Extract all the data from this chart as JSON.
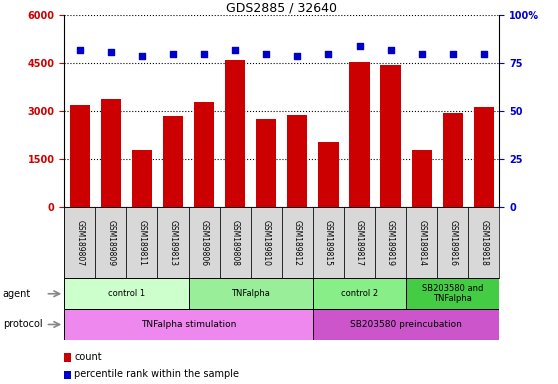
{
  "title": "GDS2885 / 32640",
  "samples": [
    "GSM189807",
    "GSM189809",
    "GSM189811",
    "GSM189813",
    "GSM189806",
    "GSM189808",
    "GSM189810",
    "GSM189812",
    "GSM189815",
    "GSM189817",
    "GSM189819",
    "GSM189814",
    "GSM189816",
    "GSM189818"
  ],
  "counts": [
    3200,
    3400,
    1800,
    2850,
    3300,
    4600,
    2750,
    2900,
    2050,
    4550,
    4450,
    1800,
    2950,
    3150
  ],
  "percentiles": [
    82,
    81,
    79,
    80,
    80,
    82,
    80,
    79,
    80,
    84,
    82,
    80,
    80,
    80
  ],
  "bar_color": "#cc0000",
  "dot_color": "#0000cc",
  "ylim_left": [
    0,
    6000
  ],
  "ylim_right": [
    0,
    100
  ],
  "yticks_left": [
    0,
    1500,
    3000,
    4500,
    6000
  ],
  "yticks_right": [
    0,
    25,
    50,
    75,
    100
  ],
  "ytick_labels_left": [
    "0",
    "1500",
    "3000",
    "4500",
    "6000"
  ],
  "ytick_labels_right": [
    "0",
    "25",
    "50",
    "75",
    "100%"
  ],
  "agent_groups": [
    {
      "label": "control 1",
      "start": 0,
      "end": 4,
      "color": "#ccffcc"
    },
    {
      "label": "TNFalpha",
      "start": 4,
      "end": 8,
      "color": "#99ee99"
    },
    {
      "label": "control 2",
      "start": 8,
      "end": 11,
      "color": "#88ee88"
    },
    {
      "label": "SB203580 and\nTNFalpha",
      "start": 11,
      "end": 14,
      "color": "#44cc44"
    }
  ],
  "protocol_groups": [
    {
      "label": "TNFalpha stimulation",
      "start": 0,
      "end": 8,
      "color": "#ee88ee"
    },
    {
      "label": "SB203580 preincubation",
      "start": 8,
      "end": 14,
      "color": "#cc55cc"
    }
  ],
  "agent_label": "agent",
  "protocol_label": "protocol",
  "legend_count_label": "count",
  "legend_pct_label": "percentile rank within the sample",
  "background_color": "#ffffff",
  "tick_color_left": "#cc0000",
  "tick_color_right": "#0000cc",
  "sample_bg": "#d8d8d8",
  "border_color": "#000000"
}
